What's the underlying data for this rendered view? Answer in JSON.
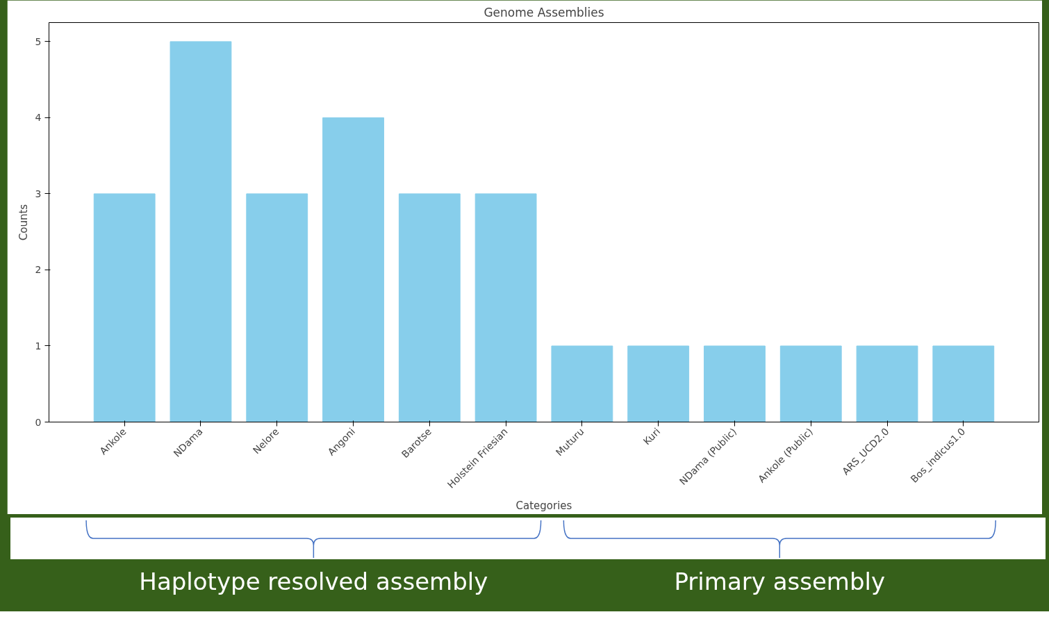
{
  "chart_data": {
    "type": "bar",
    "title": "Genome Assemblies",
    "xlabel": "Categories",
    "ylabel": "Counts",
    "categories": [
      "Ankole",
      "NDama",
      "Nelore",
      "Angoni",
      "Barotse",
      "Holstein Friesian",
      "Muturu",
      "Kuri",
      "NDama (Public)",
      "Ankole (Public)",
      "ARS_UCD2.0",
      "Bos_indicus1.0"
    ],
    "values": [
      3,
      5,
      3,
      4,
      3,
      3,
      1,
      1,
      1,
      1,
      1,
      1
    ],
    "color": "#87ceeb",
    "ylim": [
      0,
      5.25
    ],
    "yticks": [
      0,
      1,
      2,
      3,
      4,
      5
    ],
    "grid": false,
    "annotations": [
      "Haplotype resolved assembly",
      "Primary assembly"
    ]
  }
}
